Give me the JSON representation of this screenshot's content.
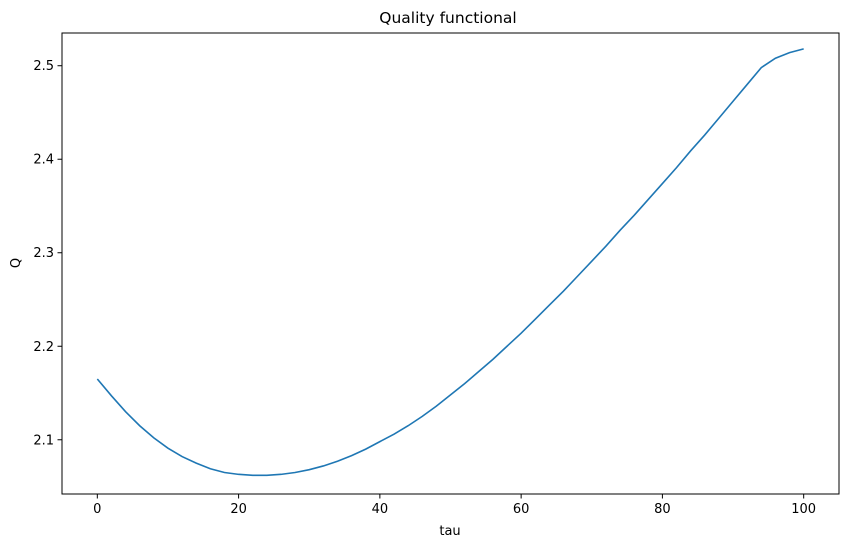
{
  "chart_data": {
    "type": "line",
    "title": "Quality functional",
    "xlabel": "tau",
    "ylabel": "Q",
    "xlim": [
      -5,
      105
    ],
    "ylim": [
      2.042,
      2.535
    ],
    "xticks": [
      0,
      20,
      40,
      60,
      80,
      100
    ],
    "yticks": [
      2.1,
      2.2,
      2.3,
      2.4,
      2.5
    ],
    "grid": false,
    "legend": "none",
    "series": [
      {
        "color": "#1f77b4",
        "x": [
          0,
          2,
          4,
          6,
          8,
          10,
          12,
          14,
          16,
          18,
          20,
          22,
          24,
          26,
          28,
          30,
          32,
          34,
          36,
          38,
          40,
          42,
          44,
          46,
          48,
          50,
          52,
          54,
          56,
          58,
          60,
          62,
          64,
          66,
          68,
          70,
          72,
          74,
          76,
          78,
          80,
          82,
          84,
          86,
          88,
          90,
          92,
          94,
          96,
          98,
          100
        ],
        "y": [
          2.165,
          2.147,
          2.13,
          2.115,
          2.102,
          2.091,
          2.082,
          2.075,
          2.069,
          2.065,
          2.063,
          2.062,
          2.062,
          2.063,
          2.065,
          2.068,
          2.072,
          2.077,
          2.083,
          2.09,
          2.098,
          2.106,
          2.115,
          2.125,
          2.136,
          2.148,
          2.16,
          2.173,
          2.186,
          2.2,
          2.214,
          2.229,
          2.244,
          2.259,
          2.275,
          2.291,
          2.307,
          2.324,
          2.34,
          2.357,
          2.374,
          2.391,
          2.409,
          2.426,
          2.444,
          2.462,
          2.48,
          2.498,
          2.508,
          2.514,
          2.518
        ]
      }
    ]
  }
}
